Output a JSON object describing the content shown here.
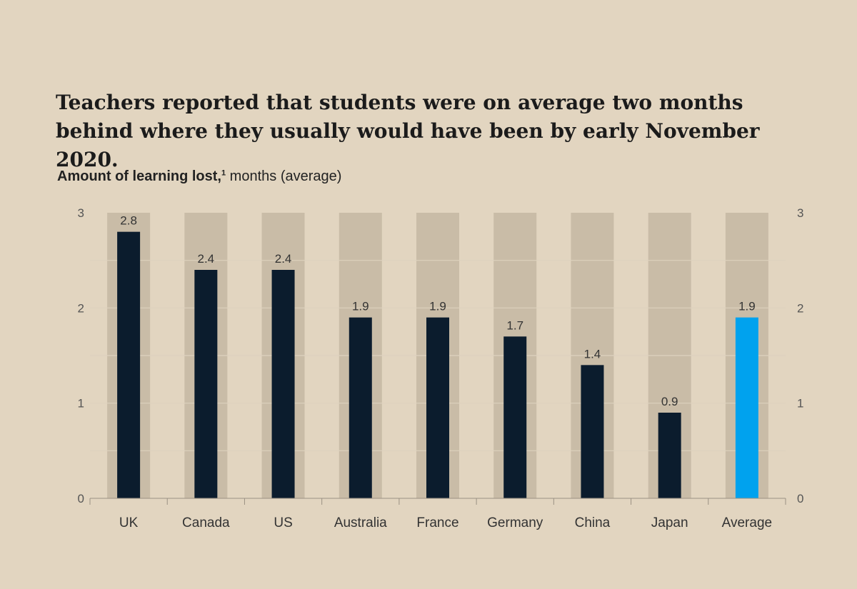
{
  "headline": "Teachers reported that students were on average two months behind where they usually would have been by early November 2020.",
  "subtitle": {
    "bold": "Amount of learning lost,",
    "footnote": "1",
    "rest": " months (average)"
  },
  "colors": {
    "background": "#e2d5c0",
    "column": "#c9bca7",
    "bar": "#0b1c2d",
    "highlight": "#00a2ee"
  },
  "chart_data": {
    "type": "bar",
    "categories": [
      "UK",
      "Canada",
      "US",
      "Australia",
      "France",
      "Germany",
      "China",
      "Japan",
      "Average"
    ],
    "values": [
      2.8,
      2.4,
      2.4,
      1.9,
      1.9,
      1.7,
      1.4,
      0.9,
      1.9
    ],
    "value_labels": [
      "2.8",
      "2.4",
      "2.4",
      "1.9",
      "1.9",
      "1.7",
      "1.4",
      "0.9",
      "1.9"
    ],
    "highlight_category": "Average",
    "ylim": [
      0,
      3
    ],
    "yticks": [
      "0",
      "1",
      "2",
      "3"
    ],
    "axes": "left and right",
    "grid": true
  }
}
